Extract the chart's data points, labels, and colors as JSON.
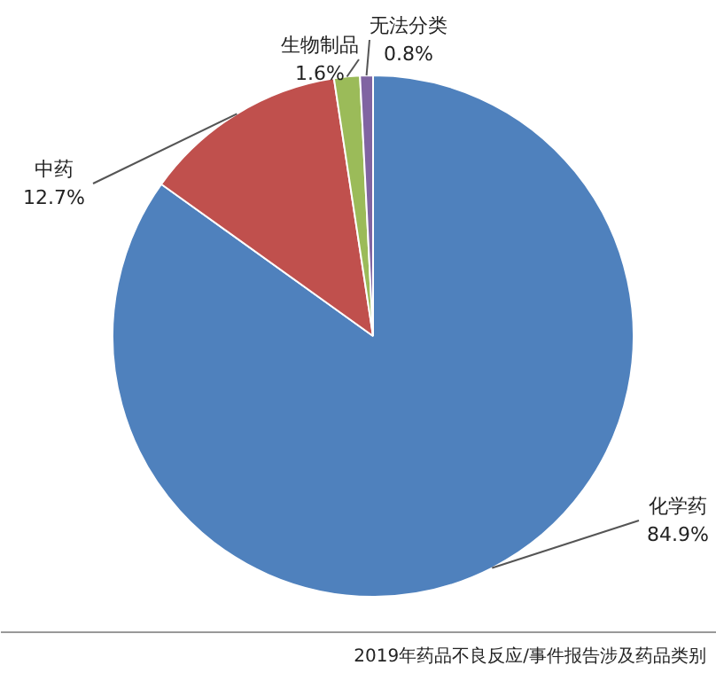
{
  "chart_data": {
    "type": "pie",
    "categories": [
      "化学药",
      "中药",
      "生物制品",
      "无法分类"
    ],
    "values": [
      84.9,
      12.7,
      1.6,
      0.8
    ],
    "value_labels": [
      "84.9%",
      "12.7%",
      "1.6%",
      "0.8%"
    ],
    "colors": [
      "#4f81bd",
      "#c0504d",
      "#9bbb59",
      "#8064a2"
    ],
    "annotations": [
      "2019年药品不良反应/事件报告涉及药品类别"
    ]
  }
}
